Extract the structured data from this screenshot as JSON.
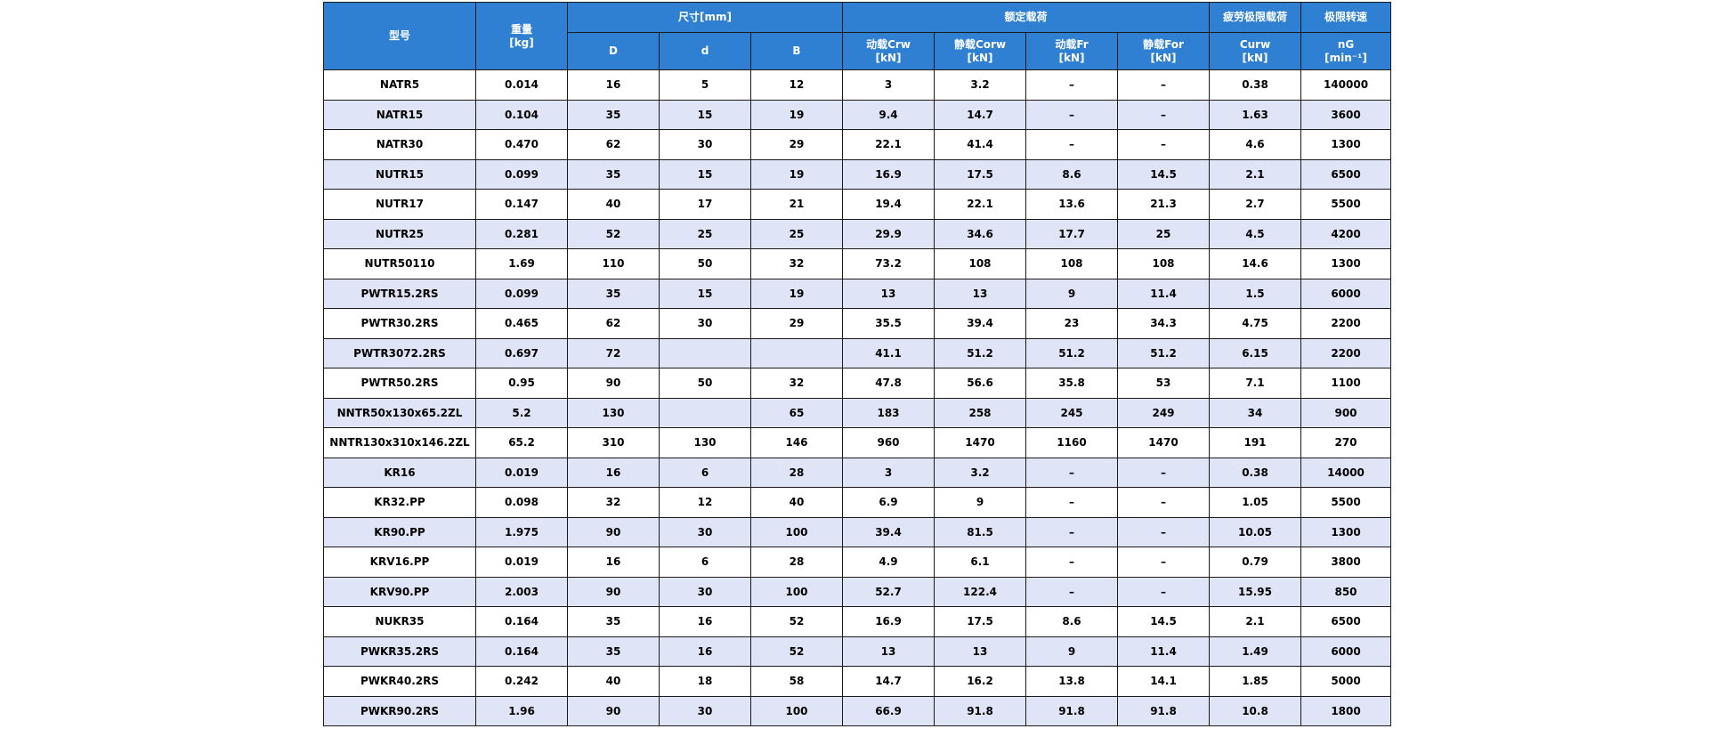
{
  "table": {
    "headers": {
      "model": "型号",
      "weight_line1": "重量",
      "weight_line2": "[kg]",
      "dimensions": "尺寸[mm]",
      "rated_load": "额定载荷",
      "fatigue": "疲劳极限载荷",
      "speed": "极限转速",
      "D": "D",
      "d": "d",
      "B": "B",
      "dyn_crw_1": "动载Crw",
      "dyn_crw_2": "[kN]",
      "stat_corw_1": "静载Corw",
      "stat_corw_2": "[kN]",
      "dyn_fr_1": "动载Fr",
      "dyn_fr_2": "[kN]",
      "stat_for_1": "静载For",
      "stat_for_2": "[kN]",
      "curw_1": "Curw",
      "curw_2": "[kN]",
      "ng_1": "nG",
      "ng_2": "[min⁻¹]"
    },
    "rows": [
      [
        "NATR5",
        "0.014",
        "16",
        "5",
        "12",
        "3",
        "3.2",
        "–",
        "–",
        "0.38",
        "140000"
      ],
      [
        "NATR15",
        "0.104",
        "35",
        "15",
        "19",
        "9.4",
        "14.7",
        "–",
        "–",
        "1.63",
        "3600"
      ],
      [
        "NATR30",
        "0.470",
        "62",
        "30",
        "29",
        "22.1",
        "41.4",
        "–",
        "–",
        "4.6",
        "1300"
      ],
      [
        "NUTR15",
        "0.099",
        "35",
        "15",
        "19",
        "16.9",
        "17.5",
        "8.6",
        "14.5",
        "2.1",
        "6500"
      ],
      [
        "NUTR17",
        "0.147",
        "40",
        "17",
        "21",
        "19.4",
        "22.1",
        "13.6",
        "21.3",
        "2.7",
        "5500"
      ],
      [
        "NUTR25",
        "0.281",
        "52",
        "25",
        "25",
        "29.9",
        "34.6",
        "17.7",
        "25",
        "4.5",
        "4200"
      ],
      [
        "NUTR50110",
        "1.69",
        "110",
        "50",
        "32",
        "73.2",
        "108",
        "108",
        "108",
        "14.6",
        "1300"
      ],
      [
        "PWTR15.2RS",
        "0.099",
        "35",
        "15",
        "19",
        "13",
        "13",
        "9",
        "11.4",
        "1.5",
        "6000"
      ],
      [
        "PWTR30.2RS",
        "0.465",
        "62",
        "30",
        "29",
        "35.5",
        "39.4",
        "23",
        "34.3",
        "4.75",
        "2200"
      ],
      [
        "PWTR3072.2RS",
        "0.697",
        "72",
        "",
        "",
        "41.1",
        "51.2",
        "51.2",
        "51.2",
        "6.15",
        "2200"
      ],
      [
        "PWTR50.2RS",
        "0.95",
        "90",
        "50",
        "32",
        "47.8",
        "56.6",
        "35.8",
        "53",
        "7.1",
        "1100"
      ],
      [
        "NNTR50x130x65.2ZL",
        "5.2",
        "130",
        "",
        "65",
        "183",
        "258",
        "245",
        "249",
        "34",
        "900"
      ],
      [
        "NNTR130x310x146.2ZL",
        "65.2",
        "310",
        "130",
        "146",
        "960",
        "1470",
        "1160",
        "1470",
        "191",
        "270"
      ],
      [
        "KR16",
        "0.019",
        "16",
        "6",
        "28",
        "3",
        "3.2",
        "–",
        "–",
        "0.38",
        "14000"
      ],
      [
        "KR32.PP",
        "0.098",
        "32",
        "12",
        "40",
        "6.9",
        "9",
        "–",
        "–",
        "1.05",
        "5500"
      ],
      [
        "KR90.PP",
        "1.975",
        "90",
        "30",
        "100",
        "39.4",
        "81.5",
        "–",
        "–",
        "10.05",
        "1300"
      ],
      [
        "KRV16.PP",
        "0.019",
        "16",
        "6",
        "28",
        "4.9",
        "6.1",
        "–",
        "–",
        "0.79",
        "3800"
      ],
      [
        "KRV90.PP",
        "2.003",
        "90",
        "30",
        "100",
        "52.7",
        "122.4",
        "–",
        "–",
        "15.95",
        "850"
      ],
      [
        "NUKR35",
        "0.164",
        "35",
        "16",
        "52",
        "16.9",
        "17.5",
        "8.6",
        "14.5",
        "2.1",
        "6500"
      ],
      [
        "PWKR35.2RS",
        "0.164",
        "35",
        "16",
        "52",
        "13",
        "13",
        "9",
        "11.4",
        "1.49",
        "6000"
      ],
      [
        "PWKR40.2RS",
        "0.242",
        "40",
        "18",
        "58",
        "14.7",
        "16.2",
        "13.8",
        "14.1",
        "1.85",
        "5000"
      ],
      [
        "PWKR90.2RS",
        "1.96",
        "90",
        "30",
        "100",
        "66.9",
        "91.8",
        "91.8",
        "91.8",
        "10.8",
        "1800"
      ]
    ]
  }
}
